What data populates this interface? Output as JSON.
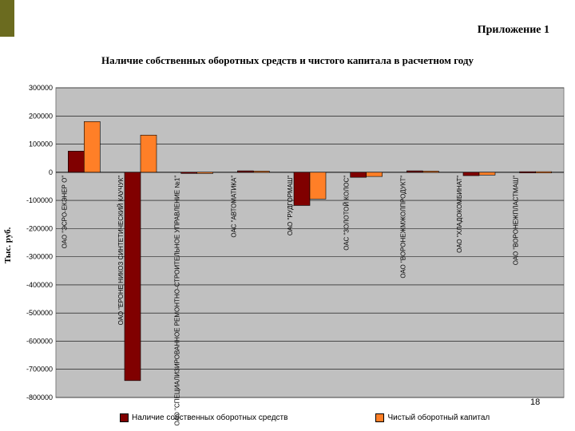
{
  "header": {
    "appendix_label": "Приложение 1",
    "page_number": "18"
  },
  "colors": {
    "accent_bar": "#6b6b1f",
    "series1": "#800000",
    "series2": "#ff7f27",
    "plot_bg": "#c0c0c0"
  },
  "chart_data": {
    "type": "bar",
    "title": "Наличие собственных оборотных средств и чистого капитала в расчетном году",
    "ylabel": "Тыс. руб.",
    "xlabel": "",
    "ylim": [
      -800000,
      300000
    ],
    "yticks": [
      300000,
      200000,
      100000,
      0,
      -100000,
      -200000,
      -300000,
      -400000,
      -500000,
      -600000,
      -700000,
      -800000
    ],
    "ytick_labels": [
      "300000",
      "200000",
      "100000",
      "0",
      "-100000",
      "-200000",
      "-300000",
      "-400000",
      "-500000",
      "-600000",
      "-700000",
      "-800000"
    ],
    "grid": true,
    "legend_position": "bottom",
    "categories": [
      "ОАО \"ЭСРО-ЕКЭНЕР О\"",
      "ОАО \"ЕРОНЕ НИКОЗ СИНТЕТИЧЕСКИЙ КАУЧУК\"",
      "ОАО \"СПЕЦИАЛИЗИРОВАННОЕ РЕМОНТНО-СТРОИТЕЛЬНОЕ УПРАВЛЕНИЕ №1\"",
      "ОАС \"АВТОМАТИКА\"",
      "ОАО \"РУДГОРМАШ\"",
      "ОАС \"ЗОЛОТОЙ КОЛОС\"",
      "ОАО \"ВОРОНЕЖМЖОЛПРОДУКТ\"",
      "ОАО \"ХЛАДОКОМБИНАТ\"",
      "ОАО \"ВОРОНЕЖПЛАСТМАШ\""
    ],
    "series": [
      {
        "name": "Наличие собственных оборотных средств",
        "values": [
          75000,
          -740000,
          -3000,
          5000,
          -118000,
          -18000,
          5000,
          -12000,
          2000
        ]
      },
      {
        "name": "Чистый оборотный капитал",
        "values": [
          180000,
          132000,
          -2000,
          4000,
          -95000,
          -15000,
          4000,
          -10000,
          2000
        ]
      }
    ]
  }
}
